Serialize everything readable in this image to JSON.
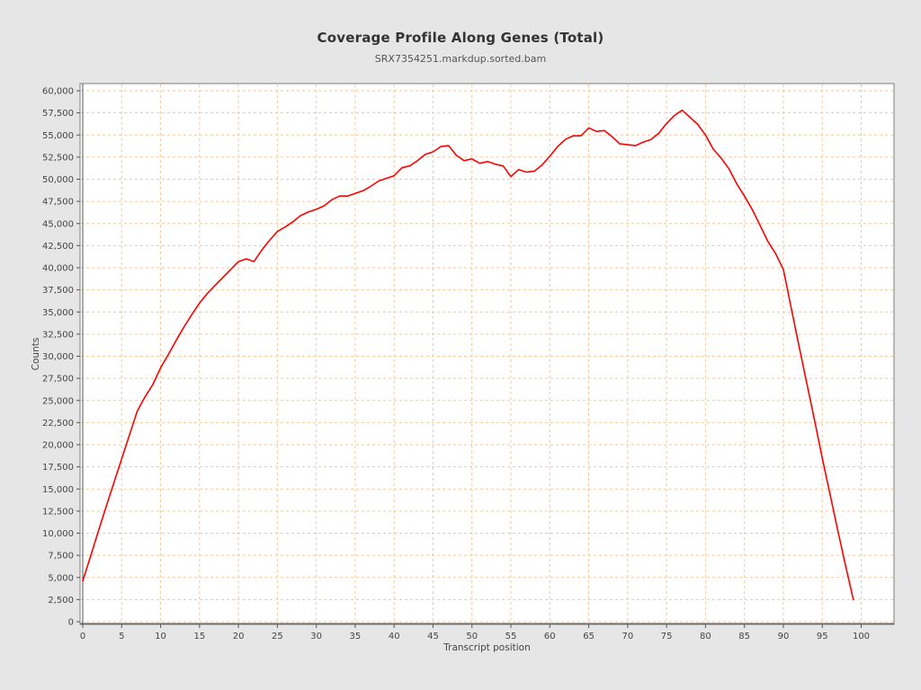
{
  "page": {
    "title": "Coverage Profile Along Genes (Total)",
    "subtitle": "SRX7354251.markdup.sorted.bam"
  },
  "chart_data": {
    "type": "line",
    "title": "Coverage Profile Along Genes (Total)",
    "subtitle": "SRX7354251.markdup.sorted.bam",
    "xlabel": "Transcript position",
    "ylabel": "Counts",
    "x_range": [
      0,
      100
    ],
    "y_range": [
      0,
      60000
    ],
    "x_tick_step": 5,
    "y_tick_step": 2500,
    "x_ticks": [
      0,
      5,
      10,
      15,
      20,
      25,
      30,
      35,
      40,
      45,
      50,
      55,
      60,
      65,
      70,
      75,
      80,
      85,
      90,
      95,
      100
    ],
    "y_ticks": [
      0,
      2500,
      5000,
      7500,
      10000,
      12500,
      15000,
      17500,
      20000,
      22500,
      25000,
      27500,
      30000,
      32500,
      35000,
      37500,
      40000,
      42500,
      45000,
      47500,
      50000,
      52500,
      55000,
      57500,
      60000
    ],
    "grid": true,
    "grid_style": "dashed",
    "legend_position": "none",
    "series": [
      {
        "name": "SRX7354251.markdup.sorted.bam",
        "color": "#ff0000",
        "x_start": 0,
        "x_step": 1,
        "values": [
          4600,
          7400,
          10200,
          13000,
          15700,
          18400,
          21100,
          23800,
          25400,
          26800,
          28700,
          30200,
          31800,
          33300,
          34700,
          36000,
          37100,
          38000,
          38900,
          39800,
          40700,
          41000,
          40700,
          42000,
          43100,
          44100,
          44600,
          45200,
          45900,
          46300,
          46600,
          47000,
          47700,
          48100,
          48100,
          48400,
          48700,
          49200,
          49800,
          50100,
          50400,
          51300,
          51500,
          52100,
          52800,
          53100,
          53700,
          53800,
          52700,
          52100,
          52300,
          51800,
          52000,
          51700,
          51500,
          50300,
          51100,
          50800,
          50900,
          51600,
          52600,
          53700,
          54500,
          54900,
          54900,
          55800,
          55400,
          55500,
          54800,
          54000,
          53900,
          53800,
          54200,
          54500,
          55200,
          56300,
          57200,
          57800,
          57000,
          56200,
          55000,
          53400,
          52400,
          51200,
          49500,
          48100,
          46600,
          44800,
          43000,
          41600,
          39800,
          35500,
          31200,
          27000,
          22800,
          18500,
          14400,
          10300,
          6300,
          2500
        ]
      }
    ],
    "colors": {
      "line": "#ff0000",
      "grid": "#efc9a0",
      "plot_border": "#7f7f7f",
      "axis": "#545454",
      "plot_bg": "#ffffff",
      "page_bg": "#e6e6e6",
      "title_text": "#333333",
      "tick_text": "#444444"
    }
  }
}
